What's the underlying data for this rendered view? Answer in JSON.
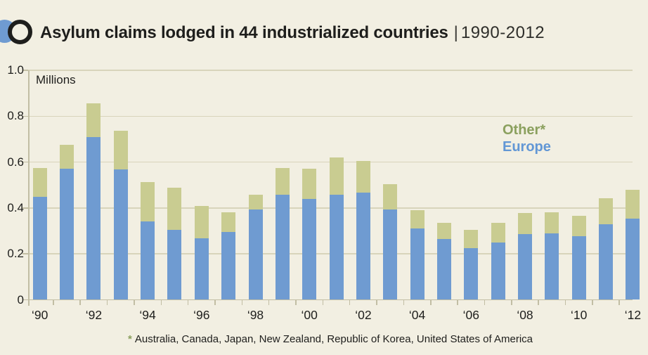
{
  "header": {
    "title_bold": "Asylum claims lodged in 44 industrialized countries",
    "title_separator": "|",
    "title_period": "1990-2012"
  },
  "chart": {
    "unit_label": "Millions",
    "legend": [
      {
        "label": "Other*",
        "color": "#8ba05e"
      },
      {
        "label": "Europe",
        "color": "#6297d5"
      }
    ],
    "footnote_marker": "*",
    "footnote_text": "Australia, Canada, Japan, New Zealand, Republic of Korea, United States of America"
  },
  "colors": {
    "background": "#f2efe2",
    "europe_bar": "#6f9bd1",
    "other_bar": "#c9cc91",
    "gridline": "#d8d4bb",
    "axis": "#c2bea4",
    "text": "#1e1e1c"
  },
  "chart_data": {
    "type": "bar",
    "stacked": true,
    "title": "Asylum claims lodged in 44 industrialized countries | 1990-2012",
    "ylabel": "Millions",
    "ylim": [
      0,
      1.0
    ],
    "y_ticks": [
      0,
      0.2,
      0.4,
      0.6,
      0.8,
      1.0
    ],
    "grid": true,
    "legend_position": "upper-right",
    "categories": [
      "1990",
      "1991",
      "1992",
      "1993",
      "1994",
      "1995",
      "1996",
      "1997",
      "1998",
      "1999",
      "2000",
      "2001",
      "2002",
      "2003",
      "2004",
      "2005",
      "2006",
      "2007",
      "2008",
      "2009",
      "2010",
      "2011",
      "2012"
    ],
    "x_tick_labels": [
      "‘90",
      "‘92",
      "‘94",
      "‘96",
      "‘98",
      "‘00",
      "‘02",
      "‘04",
      "‘06",
      "‘08",
      "‘10",
      "‘12"
    ],
    "tick_every": 2,
    "series": [
      {
        "name": "Europe",
        "color": "#6f9bd1",
        "values": [
          0.448,
          0.57,
          0.71,
          0.567,
          0.34,
          0.306,
          0.268,
          0.296,
          0.394,
          0.458,
          0.438,
          0.458,
          0.466,
          0.393,
          0.31,
          0.264,
          0.224,
          0.251,
          0.285,
          0.288,
          0.277,
          0.33,
          0.355
        ]
      },
      {
        "name": "Other",
        "color": "#c9cc91",
        "values": [
          0.125,
          0.106,
          0.147,
          0.17,
          0.172,
          0.181,
          0.142,
          0.085,
          0.065,
          0.117,
          0.132,
          0.163,
          0.14,
          0.112,
          0.081,
          0.072,
          0.081,
          0.085,
          0.092,
          0.094,
          0.09,
          0.113,
          0.125
        ]
      }
    ]
  }
}
